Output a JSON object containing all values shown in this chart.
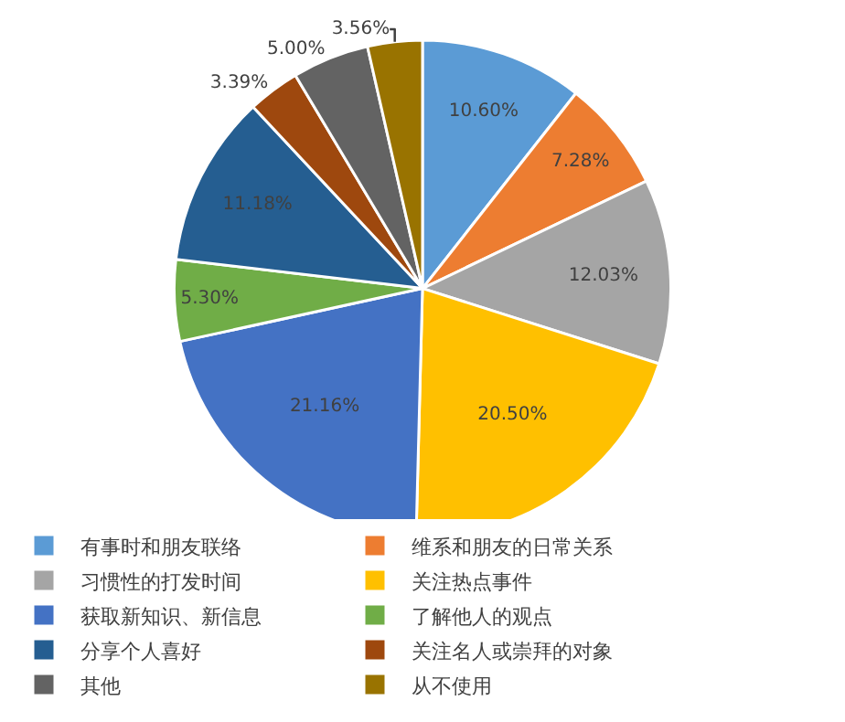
{
  "chart_data": {
    "type": "pie",
    "categories": [
      "有事时和朋友联络",
      "维系和朋友的日常关系",
      "习惯性的打发时间",
      "关注热点事件",
      "获取新知识、新信息",
      "了解他人的观点",
      "分享个人喜好",
      "关注名人或崇拜的对象",
      "其他",
      "从不使用"
    ],
    "values": [
      10.6,
      7.28,
      12.03,
      20.5,
      21.16,
      5.3,
      11.18,
      3.39,
      5.0,
      3.56
    ],
    "value_labels": [
      "10.60%",
      "7.28%",
      "12.03%",
      "20.50%",
      "21.16%",
      "5.30%",
      "11.18%",
      "3.39%",
      "5.00%",
      "3.56%"
    ],
    "colors": [
      "#5b9bd5",
      "#ed7d31",
      "#a5a5a5",
      "#ffc000",
      "#4472c4",
      "#70ad47",
      "#255e91",
      "#9e480e",
      "#636363",
      "#997300"
    ],
    "legend": "bottom"
  }
}
